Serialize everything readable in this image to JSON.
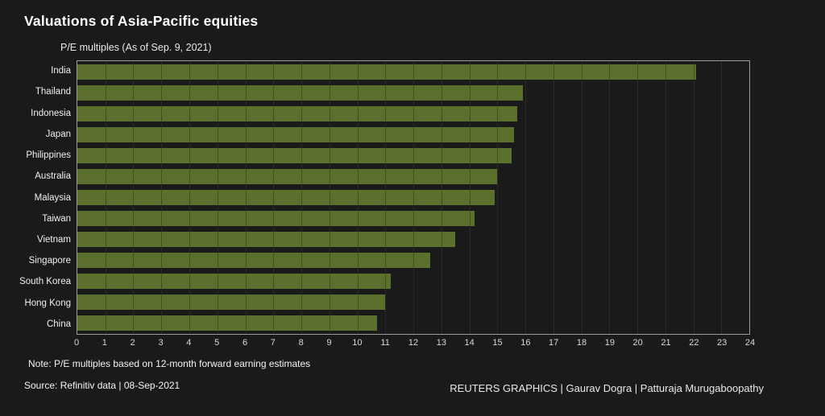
{
  "title": "Valuations of Asia-Pacific equities",
  "subtitle": "P/E multiples (As of Sep. 9, 2021)",
  "note": "Note: P/E multiples based on 12-month forward earning estimates",
  "source": "Source: Refinitiv data | 08-Sep-2021",
  "credit": "REUTERS GRAPHICS | Gaurav Dogra | Patturaja Murugaboopathy",
  "colors": {
    "background": "#1a1a1a",
    "bar": "#5a702c",
    "gridline": "#3a3a3a",
    "plot_border": "#9b9b9b",
    "title_text": "#ffffff",
    "label_text": "#f0f0f0",
    "tick_text": "#d9d9d9"
  },
  "chart_data": {
    "type": "bar",
    "orientation": "horizontal",
    "title": "Valuations of Asia-Pacific equities",
    "subtitle": "P/E multiples (As of Sep. 9, 2021)",
    "categories": [
      "India",
      "Thailand",
      "Indonesia",
      "Japan",
      "Philippines",
      "Australia",
      "Malaysia",
      "Taiwan",
      "Vietnam",
      "Singapore",
      "South Korea",
      "Hong Kong",
      "China"
    ],
    "values": [
      22.1,
      15.9,
      15.7,
      15.6,
      15.5,
      15.0,
      14.9,
      14.2,
      13.5,
      12.6,
      11.2,
      11.0,
      10.7
    ],
    "xlabel": "",
    "ylabel": "",
    "xlim": [
      0,
      24
    ],
    "x_ticks": [
      0,
      1,
      2,
      3,
      4,
      5,
      6,
      7,
      8,
      9,
      10,
      11,
      12,
      13,
      14,
      15,
      16,
      17,
      18,
      19,
      20,
      21,
      22,
      23,
      24
    ],
    "grid": true,
    "legend": null
  }
}
